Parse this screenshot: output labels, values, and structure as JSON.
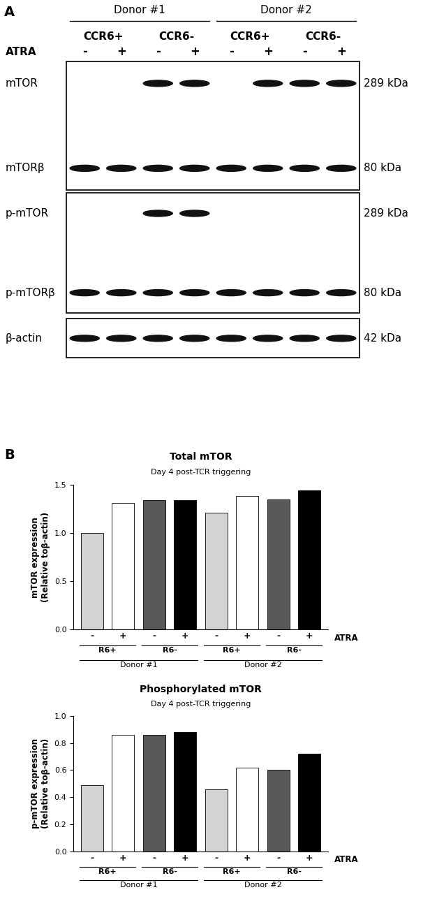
{
  "panel_a": {
    "label": "A",
    "groups": [
      "Donor #1",
      "Donor #2"
    ],
    "subgroups": [
      "CCR6+",
      "CCR6-",
      "CCR6+",
      "CCR6-"
    ],
    "treatment_label": "ATRA",
    "lanes": [
      "-",
      "+",
      "-",
      "+",
      "-",
      "+",
      "-",
      "+"
    ],
    "blots": [
      {
        "bands": [
          {
            "label": "mTOR",
            "size": "289 kDa",
            "present": [
              false,
              false,
              true,
              true,
              false,
              true,
              true,
              true
            ]
          },
          {
            "label": "mTORβ",
            "size": "80 kDa",
            "present": [
              true,
              true,
              true,
              true,
              true,
              true,
              true,
              true
            ]
          }
        ]
      },
      {
        "bands": [
          {
            "label": "p-mTOR",
            "size": "289 kDa",
            "present": [
              false,
              false,
              true,
              true,
              false,
              false,
              false,
              false
            ]
          },
          {
            "label": "p-mTORβ",
            "size": "80 kDa",
            "present": [
              true,
              true,
              true,
              true,
              true,
              true,
              true,
              true
            ]
          }
        ]
      },
      {
        "bands": [
          {
            "label": "β-actin",
            "size": "42 kDa",
            "present": [
              true,
              true,
              true,
              true,
              true,
              true,
              true,
              true
            ]
          }
        ]
      }
    ]
  },
  "panel_b_label": "B",
  "chart_data": [
    {
      "type": "bar",
      "title": "Total mTOR",
      "subtitle": "Day 4 post-TCR triggering",
      "y_label": "mTOR expression\n(Relative toβ-actin)",
      "categories": [
        "-",
        "+",
        "-",
        "+",
        "-",
        "+",
        "-",
        "+"
      ],
      "groups": [
        "R6+",
        "R6-",
        "R6+",
        "R6-"
      ],
      "supergroups": [
        "Donor #1",
        "Donor #2"
      ],
      "x_annotation": "ATRA",
      "values": [
        1.0,
        1.31,
        1.34,
        1.34,
        1.21,
        1.38,
        1.35,
        1.44
      ],
      "colors": [
        "#d3d3d3",
        "#ffffff",
        "#595959",
        "#000000",
        "#d3d3d3",
        "#ffffff",
        "#595959",
        "#000000"
      ],
      "ylim": [
        0,
        1.5
      ],
      "yticks": [
        {
          "value": 0,
          "label": "0.0"
        },
        {
          "value": 0.5,
          "label": "0.5"
        },
        {
          "value": 1.0,
          "label": "1.0"
        },
        {
          "value": 1.5,
          "label": "1.5"
        }
      ]
    },
    {
      "type": "bar",
      "title": "Phosphorylated mTOR",
      "subtitle": "Day 4 post-TCR triggering",
      "y_label": "p-mTOR expression\n(Relative toβ-actin)",
      "categories": [
        "-",
        "+",
        "-",
        "+",
        "-",
        "+",
        "-",
        "+"
      ],
      "groups": [
        "R6+",
        "R6-",
        "R6+",
        "R6-"
      ],
      "supergroups": [
        "Donor #1",
        "Donor #2"
      ],
      "x_annotation": "ATRA",
      "values": [
        0.49,
        0.86,
        0.86,
        0.88,
        0.46,
        0.62,
        0.6,
        0.72
      ],
      "colors": [
        "#d3d3d3",
        "#ffffff",
        "#595959",
        "#000000",
        "#d3d3d3",
        "#ffffff",
        "#595959",
        "#000000"
      ],
      "ylim": [
        0,
        1.0
      ],
      "yticks": [
        {
          "value": 0,
          "label": "0.0"
        },
        {
          "value": 0.2,
          "label": "0.2"
        },
        {
          "value": 0.4,
          "label": "0.4"
        },
        {
          "value": 0.6,
          "label": "0.6"
        },
        {
          "value": 0.8,
          "label": "0.8"
        },
        {
          "value": 1.0,
          "label": "1.0"
        }
      ]
    }
  ]
}
